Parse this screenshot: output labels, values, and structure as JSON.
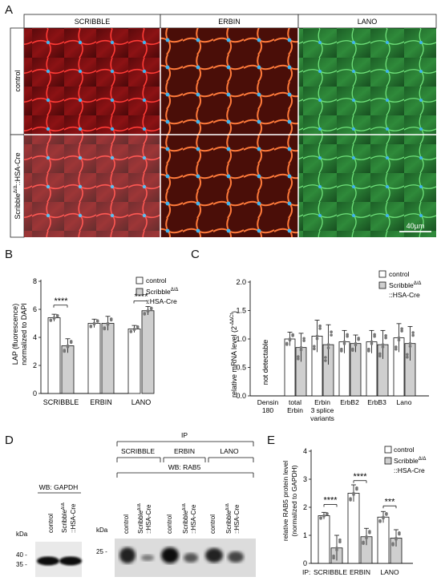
{
  "panels": {
    "A": {
      "letter": "A",
      "columns": [
        "SCRIBBLE",
        "ERBIN",
        "LANO"
      ],
      "rows": [
        "control",
        "Scribble",
        "::HSA-Cre"
      ],
      "row_superscript": "Δ/Δ",
      "scale_bar": "40µm",
      "colors": {
        "red": "#c0181b",
        "green": "#2c9a3a",
        "nuclei": "#34a6e8"
      }
    },
    "B": {
      "letter": "B",
      "ylabel": [
        "LAP (fluorescence)",
        "normalized to DAPI"
      ],
      "legend": {
        "control": "control",
        "mutant": "Scribble",
        "mutant_sup": "Δ/Δ",
        "mutant2": "::HSA-Cre"
      },
      "significance": [
        "****",
        "****"
      ]
    },
    "C": {
      "letter": "C",
      "ylabel": "relative mRNA level (2",
      "ylabel_sup": "-ΔΔCt",
      "ylabel_end": ")",
      "annotation": "not detectable",
      "legend": {
        "control": "control",
        "mutant": "Scribble",
        "mutant_sup": "Δ/Δ",
        "mutant2": "::HSA-Cre"
      },
      "category_lines": [
        [
          "Densin",
          "180"
        ],
        [
          "total",
          "Erbin"
        ],
        [
          "Erbin",
          "3 splice",
          "variants"
        ],
        [
          "ErbB2"
        ],
        [
          "ErbB3"
        ],
        [
          "Lano"
        ]
      ]
    },
    "D": {
      "letter": "D",
      "wb_gapdh": "WB: GAPDH",
      "ip": "IP",
      "ip_groups": [
        "SCRIBBLE",
        "ERBIN",
        "LANO"
      ],
      "wb_rab5": "WB: RAB5",
      "lane_control": "control",
      "lane_mutant": "Scribble",
      "lane_mutant_sup": "Δ/Δ",
      "lane_mutant2": "::HSA-Cre",
      "kda": "kDa",
      "markers_gapdh": [
        "40 -",
        "35 -"
      ],
      "marker_rab5": "25 -"
    },
    "E": {
      "letter": "E",
      "ylabel": [
        "relative RAB5 protein level",
        "(normalized to GAPDH)"
      ],
      "legend": {
        "control": "control",
        "mutant": "Scribble",
        "mutant_sup": "Δ/Δ",
        "mutant2": "::HSA-Cre"
      },
      "ip_prefix": "IP:",
      "significance": [
        "****",
        "****",
        "***"
      ]
    }
  },
  "chart_data": [
    {
      "type": "bar",
      "panel": "B",
      "categories": [
        "SCRIBBLE",
        "ERBIN",
        "LANO"
      ],
      "series": [
        {
          "name": "control",
          "values": [
            5.4,
            5.0,
            4.6
          ],
          "errors": [
            0.25,
            0.3,
            0.25
          ]
        },
        {
          "name": "Scribble Δ/Δ ::HSA-Cre",
          "values": [
            3.4,
            5.0,
            5.9
          ],
          "errors": [
            0.5,
            0.5,
            0.3
          ]
        }
      ],
      "ylim": [
        0,
        8
      ],
      "yticks": [
        0,
        2,
        4,
        6,
        8
      ]
    },
    {
      "type": "bar",
      "panel": "C",
      "categories": [
        "Densin 180",
        "total Erbin",
        "Erbin 3 splice variants",
        "ErbB2",
        "ErbB3",
        "Lano"
      ],
      "series": [
        {
          "name": "control",
          "values": [
            null,
            1.0,
            1.05,
            0.95,
            0.95,
            1.02
          ],
          "errors": [
            null,
            0.12,
            0.28,
            0.2,
            0.2,
            0.25
          ]
        },
        {
          "name": "Scribble Δ/Δ ::HSA-Cre",
          "values": [
            null,
            0.85,
            0.9,
            0.92,
            0.9,
            0.92
          ],
          "errors": [
            null,
            0.25,
            0.35,
            0.15,
            0.25,
            0.3
          ]
        }
      ],
      "ylim": [
        0,
        2.0
      ],
      "yticks": [
        0.0,
        0.5,
        1.0,
        1.5,
        2.0
      ]
    },
    {
      "type": "bar",
      "panel": "E",
      "categories": [
        "SCRIBBLE",
        "ERBIN",
        "LANO"
      ],
      "series": [
        {
          "name": "control",
          "values": [
            1.7,
            2.5,
            1.65
          ],
          "errors": [
            0.12,
            0.3,
            0.2
          ]
        },
        {
          "name": "Scribble Δ/Δ ::HSA-Cre",
          "values": [
            0.55,
            0.95,
            0.9
          ],
          "errors": [
            0.45,
            0.3,
            0.3
          ]
        }
      ],
      "ylim": [
        0,
        4
      ],
      "yticks": [
        0,
        1,
        2,
        3,
        4
      ]
    }
  ]
}
